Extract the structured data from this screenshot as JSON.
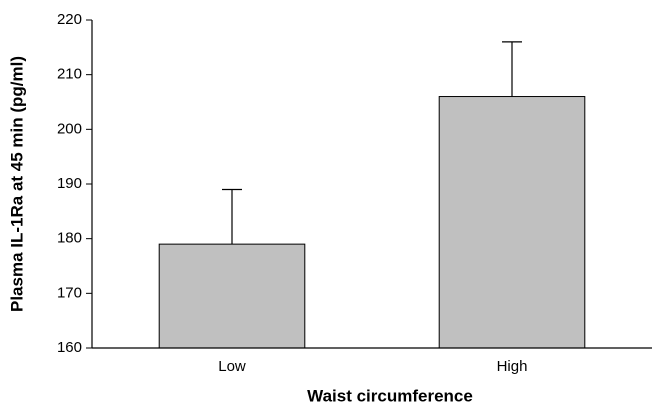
{
  "chart_data": {
    "type": "bar",
    "categories": [
      "Low",
      "High"
    ],
    "values": [
      179,
      206
    ],
    "errors": [
      10,
      10
    ],
    "color": "#c0c0c0",
    "xlabel": "Waist circumference",
    "ylabel": "Plasma IL-1Ra at 45 min (pg/ml)",
    "ylim": [
      160,
      220
    ],
    "yticks": [
      160,
      170,
      180,
      190,
      200,
      210,
      220
    ],
    "grid": false
  }
}
